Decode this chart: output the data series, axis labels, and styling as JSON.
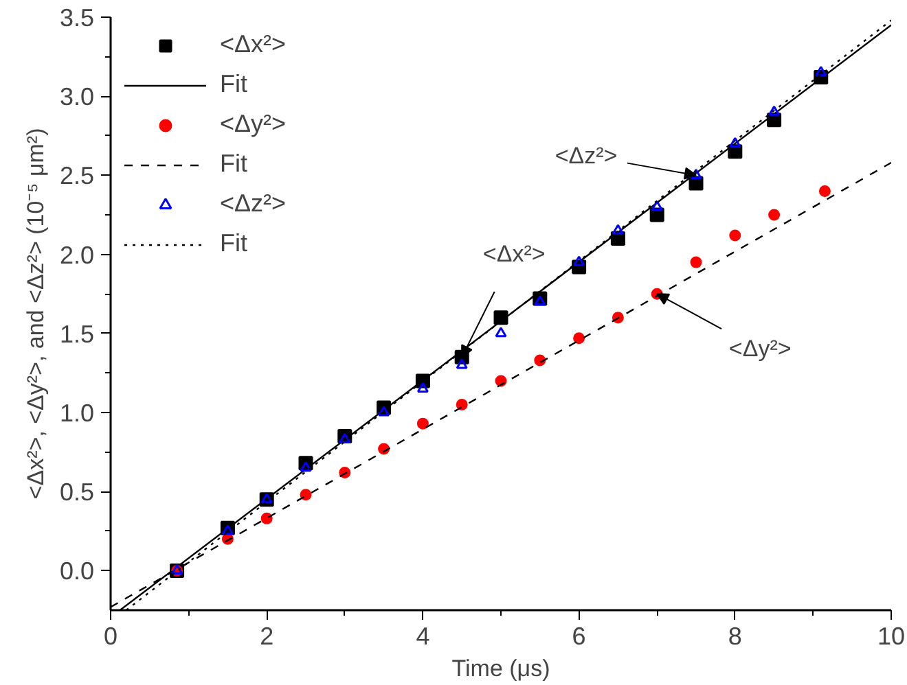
{
  "chart_data": {
    "type": "scatter",
    "xlabel": "Time (μs)",
    "ylabel": "<Δx²>, <Δy²>, and <Δz²> (10⁻⁵ μm²)",
    "xlim": [
      0,
      10
    ],
    "ylim": [
      -0.25,
      3.5
    ],
    "xticks": [
      0,
      2,
      4,
      6,
      8,
      10
    ],
    "yticks": [
      {
        "value": 0,
        "label": "0.0"
      },
      {
        "value": 0.5,
        "label": "0.5"
      },
      {
        "value": 1,
        "label": "1.0"
      },
      {
        "value": 1.5,
        "label": "1.5"
      },
      {
        "value": 2,
        "label": "2.0"
      },
      {
        "value": 2.5,
        "label": "2.5"
      },
      {
        "value": 3,
        "label": "3.0"
      },
      {
        "value": 3.5,
        "label": "3.5"
      }
    ],
    "grid": false,
    "legend": "top left",
    "series": [
      {
        "name": "<Δx²>",
        "marker": "square",
        "color": "#000000",
        "x": [
          0.85,
          1.5,
          2,
          2.5,
          3,
          3.5,
          4,
          4.5,
          5,
          5.5,
          6,
          6.5,
          7,
          7.5,
          8,
          8.5,
          9.1
        ],
        "values": [
          0,
          0.27,
          0.45,
          0.68,
          0.85,
          1.03,
          1.2,
          1.35,
          1.6,
          1.72,
          1.92,
          2.1,
          2.25,
          2.45,
          2.65,
          2.85,
          3.12
        ]
      },
      {
        "name": "Fit",
        "type": "line",
        "line_style": "solid",
        "color": "#000000",
        "x": [
          0.12,
          10
        ],
        "values": [
          -0.25,
          3.45
        ]
      },
      {
        "name": "<Δy²>",
        "marker": "circle",
        "color": "#ff0000",
        "x": [
          0.85,
          1.5,
          2,
          2.5,
          3,
          3.5,
          4,
          4.5,
          5,
          5.5,
          6,
          6.5,
          7,
          7.5,
          8,
          8.5,
          9.15
        ],
        "values": [
          0,
          0.2,
          0.33,
          0.48,
          0.62,
          0.77,
          0.93,
          1.05,
          1.2,
          1.33,
          1.47,
          1.6,
          1.75,
          1.95,
          2.12,
          2.25,
          2.4
        ]
      },
      {
        "name": "Fit",
        "type": "line",
        "line_style": "dashed",
        "color": "#000000",
        "x": [
          0,
          10
        ],
        "values": [
          -0.23,
          2.58
        ]
      },
      {
        "name": "<Δz²>",
        "marker": "triangle",
        "color": "#0000ff",
        "x": [
          0.85,
          1.5,
          2,
          2.5,
          3,
          3.5,
          4,
          4.5,
          5,
          5.5,
          6,
          6.5,
          7,
          7.5,
          8,
          8.5,
          9.1
        ],
        "values": [
          0,
          0.25,
          0.45,
          0.65,
          0.83,
          1.0,
          1.15,
          1.3,
          1.5,
          1.7,
          1.95,
          2.15,
          2.3,
          2.5,
          2.7,
          2.9,
          3.15
        ]
      },
      {
        "name": "Fit",
        "type": "line",
        "line_style": "dotted",
        "color": "#000000",
        "x": [
          0.2,
          10
        ],
        "values": [
          -0.25,
          3.48
        ]
      }
    ],
    "annotations": [
      {
        "text": "<Δz²>",
        "x": 7.5,
        "y": 2.5
      },
      {
        "text": "<Δx²>",
        "x": 4.5,
        "y": 1.35
      },
      {
        "text": "<Δy²>",
        "x": 7,
        "y": 1.75
      }
    ]
  }
}
